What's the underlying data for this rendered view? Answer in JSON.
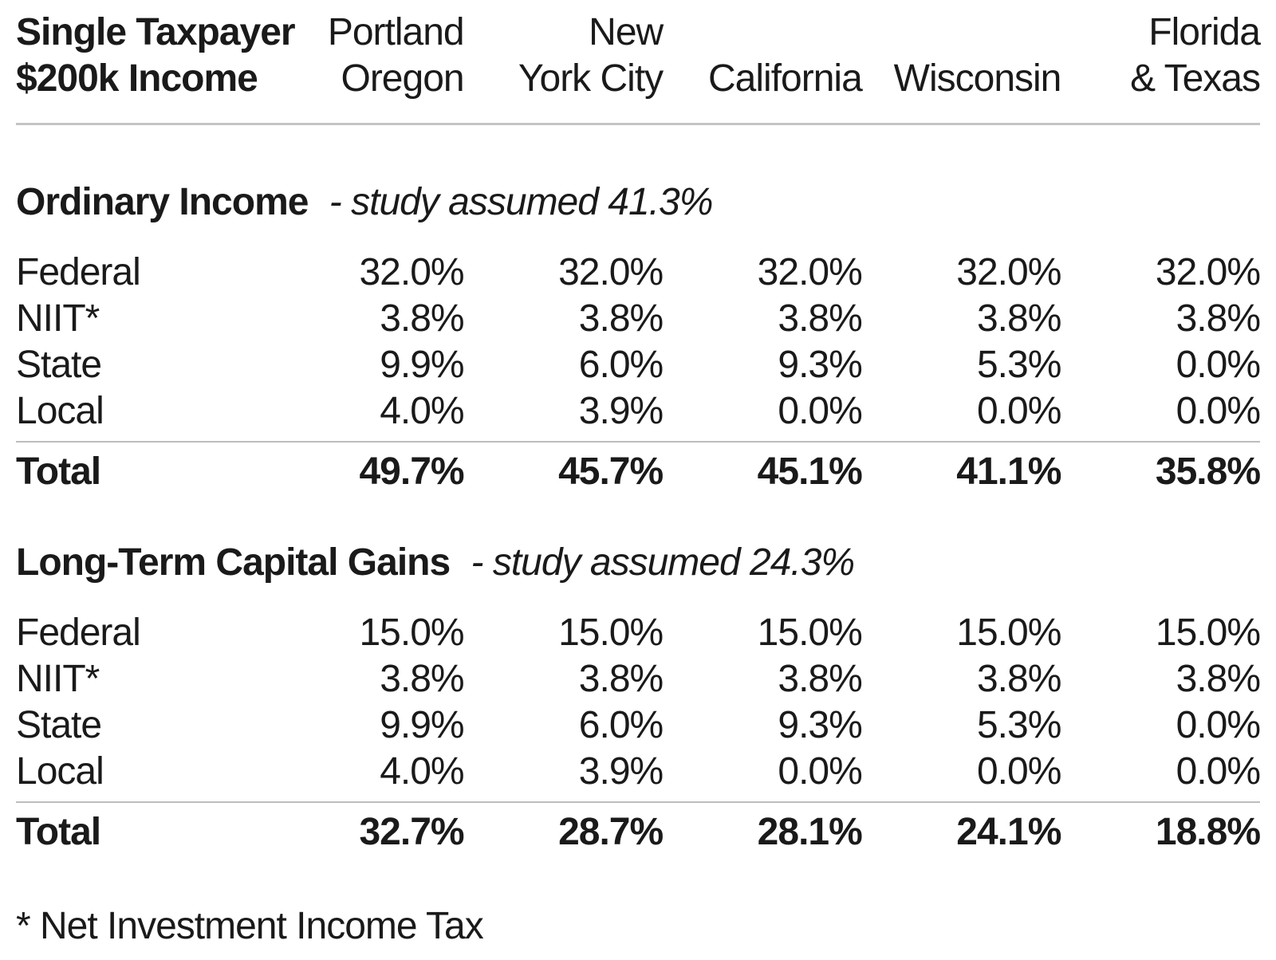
{
  "chart_data": {
    "type": "table",
    "title_line1": "Single Taxpayer",
    "title_line2": "$200k Income",
    "columns": [
      {
        "line1": "Portland",
        "line2": "Oregon"
      },
      {
        "line1": "New",
        "line2": "York City"
      },
      {
        "line1": "",
        "line2": "California"
      },
      {
        "line1": "",
        "line2": "Wisconsin"
      },
      {
        "line1": "Florida",
        "line2": "& Texas"
      }
    ],
    "sections": [
      {
        "title": "Ordinary Income",
        "subtitle": "- study assumed 41.3%",
        "rows": [
          {
            "label": "Federal",
            "values": [
              "32.0%",
              "32.0%",
              "32.0%",
              "32.0%",
              "32.0%"
            ]
          },
          {
            "label": "NIIT*",
            "values": [
              "3.8%",
              "3.8%",
              "3.8%",
              "3.8%",
              "3.8%"
            ]
          },
          {
            "label": "State",
            "values": [
              "9.9%",
              "6.0%",
              "9.3%",
              "5.3%",
              "0.0%"
            ]
          },
          {
            "label": "Local",
            "values": [
              "4.0%",
              "3.9%",
              "0.0%",
              "0.0%",
              "0.0%"
            ]
          }
        ],
        "total": {
          "label": "Total",
          "values": [
            "49.7%",
            "45.7%",
            "45.1%",
            "41.1%",
            "35.8%"
          ]
        }
      },
      {
        "title": "Long-Term Capital Gains",
        "subtitle": "- study assumed 24.3%",
        "rows": [
          {
            "label": "Federal",
            "values": [
              "15.0%",
              "15.0%",
              "15.0%",
              "15.0%",
              "15.0%"
            ]
          },
          {
            "label": "NIIT*",
            "values": [
              "3.8%",
              "3.8%",
              "3.8%",
              "3.8%",
              "3.8%"
            ]
          },
          {
            "label": "State",
            "values": [
              "9.9%",
              "6.0%",
              "9.3%",
              "5.3%",
              "0.0%"
            ]
          },
          {
            "label": "Local",
            "values": [
              "4.0%",
              "3.9%",
              "0.0%",
              "0.0%",
              "0.0%"
            ]
          }
        ],
        "total": {
          "label": "Total",
          "values": [
            "32.7%",
            "28.7%",
            "28.1%",
            "24.1%",
            "18.8%"
          ]
        }
      }
    ],
    "footnote": "* Net Investment Income Tax"
  },
  "colors": {
    "background": "#ffffff",
    "text": "#1a1a1a",
    "header_rule": "#c4c4c4",
    "total_rule": "#bdbdbd"
  }
}
